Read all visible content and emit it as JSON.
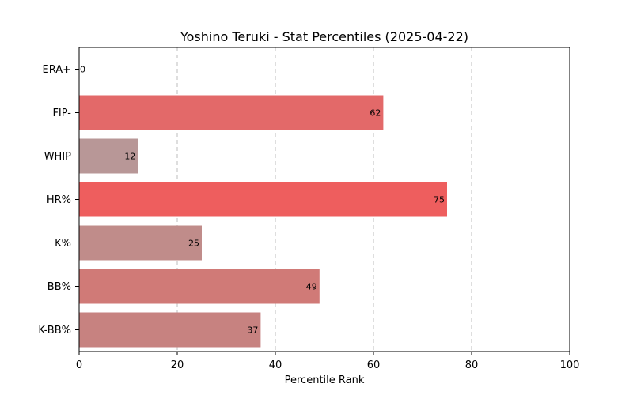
{
  "chart_data": {
    "type": "bar",
    "orientation": "horizontal",
    "title": "Yoshino Teruki - Stat Percentiles (2025-04-22)",
    "xlabel": "Percentile Rank",
    "ylabel": "",
    "xlim": [
      0,
      100
    ],
    "xticks": [
      0,
      20,
      40,
      60,
      80,
      100
    ],
    "grid": "x-dashed",
    "categories": [
      "ERA+",
      "FIP-",
      "WHIP",
      "HR%",
      "K%",
      "BB%",
      "K-BB%"
    ],
    "values": [
      0,
      62,
      12,
      75,
      25,
      49,
      37
    ],
    "colors": [
      "#b39999",
      "#e36969",
      "#b89797",
      "#ee5e5e",
      "#c08c8a",
      "#d07a77",
      "#c78280"
    ]
  }
}
